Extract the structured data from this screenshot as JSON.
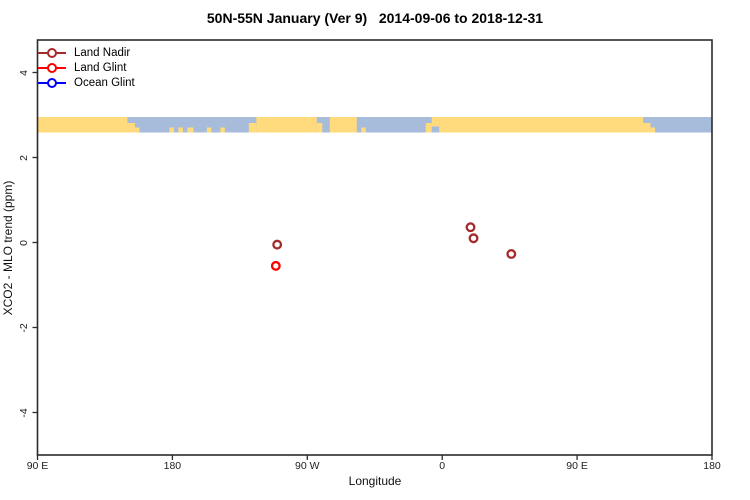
{
  "title": "50N-55N January (Ver 9)   2014-09-06 to 2018-12-31",
  "legend": {
    "items": [
      {
        "label": "Land Nadir",
        "color": "#A52A2A"
      },
      {
        "label": "Land Glint",
        "color": "#FF0000"
      },
      {
        "label": "Ocean Glint",
        "color": "#0000FF"
      }
    ]
  },
  "chart_data": {
    "type": "scatter",
    "title": "50N-55N January (Ver 9)   2014-09-06 to 2018-12-31",
    "xlabel": "Longitude",
    "ylabel": "XCO2 - MLO trend (ppm)",
    "x_axis": {
      "range_deg": [
        90,
        540
      ],
      "ticks": [
        {
          "lon": 90,
          "label": "90 E"
        },
        {
          "lon": 180,
          "label": "180"
        },
        {
          "lon": 270,
          "label": "90 W"
        },
        {
          "lon": 360,
          "label": "0"
        },
        {
          "lon": 450,
          "label": "90 E"
        },
        {
          "lon": 540,
          "label": "180"
        }
      ],
      "note": "axis wraps: 90E to 180 to 90W to 0 to 90E to 180"
    },
    "y_axis": {
      "range": [
        -5,
        4.8
      ],
      "ticks": [
        {
          "value": -4,
          "label": "-4"
        },
        {
          "value": -2,
          "label": "-2"
        },
        {
          "value": 0,
          "label": "0"
        },
        {
          "value": 2,
          "label": "2"
        },
        {
          "value": 4,
          "label": "4"
        }
      ],
      "grid": false
    },
    "map_strip": {
      "description": "latitude-band coastline strip 50N-55N drawn across plot near y=2.8",
      "center_value": 2.77,
      "land_color": "#FFDB7D",
      "ocean_color": "#A7BBDB",
      "land_segments": [
        {
          "from": 90,
          "to": 150,
          "v": "full"
        },
        {
          "from": 150,
          "to": 155,
          "v": "b60"
        },
        {
          "from": 155,
          "to": 158,
          "v": "b30"
        },
        {
          "from": 178,
          "to": 181,
          "v": "b30"
        },
        {
          "from": 184,
          "to": 187,
          "v": "b30"
        },
        {
          "from": 190,
          "to": 194,
          "v": "b30"
        },
        {
          "from": 203,
          "to": 206,
          "v": "b30"
        },
        {
          "from": 212,
          "to": 215,
          "v": "b30"
        },
        {
          "from": 231,
          "to": 236,
          "v": "b60"
        },
        {
          "from": 236,
          "to": 276.3,
          "v": "full"
        },
        {
          "from": 276.3,
          "to": 280,
          "v": "b60"
        },
        {
          "from": 285,
          "to": 303,
          "v": "full"
        },
        {
          "from": 306,
          "to": 309,
          "v": "b30"
        },
        {
          "from": 349,
          "to": 353,
          "v": "b60"
        },
        {
          "from": 353,
          "to": 358,
          "v": "t60"
        },
        {
          "from": 358,
          "to": 494,
          "v": "full"
        },
        {
          "from": 494,
          "to": 499,
          "v": "b60"
        },
        {
          "from": 499,
          "to": 502,
          "v": "b30"
        }
      ]
    },
    "series": [
      {
        "name": "Land Nadir",
        "color": "#A52A2A",
        "marker": "open-circle",
        "points": [
          {
            "lon_axis": 249.9,
            "lon_label": "110W",
            "value": -0.05
          },
          {
            "lon_axis": 378.9,
            "lon_label": "19E",
            "value": 0.36
          },
          {
            "lon_axis": 380.9,
            "lon_label": "21E",
            "value": 0.1
          },
          {
            "lon_axis": 406.1,
            "lon_label": "46E",
            "value": -0.27
          }
        ]
      },
      {
        "name": "Land Glint",
        "color": "#FF0000",
        "marker": "open-circle",
        "points": [
          {
            "lon_axis": 249.0,
            "lon_label": "111W",
            "value": -0.55
          }
        ]
      },
      {
        "name": "Ocean Glint",
        "color": "#0000FF",
        "marker": "open-circle",
        "points": []
      }
    ]
  }
}
